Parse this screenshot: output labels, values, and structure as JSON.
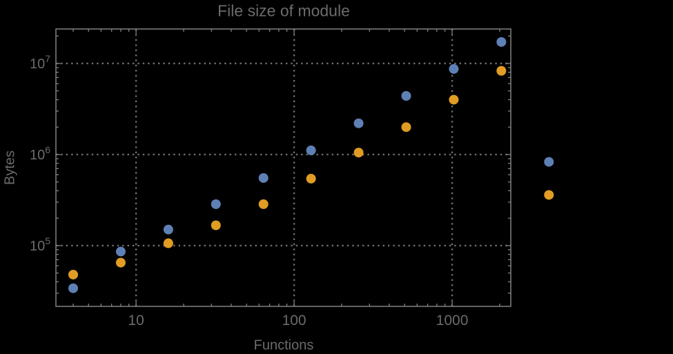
{
  "chart_data": {
    "type": "scatter",
    "title": "File size of module",
    "xlabel": "Functions",
    "ylabel": "Bytes",
    "xscale": "log",
    "yscale": "log",
    "xlim": [
      3.11,
      2350
    ],
    "ylim": [
      21500,
      23900000
    ],
    "grid": "dotted-at-major-ticks",
    "legend": "none",
    "x_ticks": [
      {
        "value": 10,
        "label": "10"
      },
      {
        "value": 100,
        "label": "100"
      },
      {
        "value": 1000,
        "label": "1000"
      }
    ],
    "y_ticks": [
      {
        "value": 100000,
        "mantissa": "10",
        "exponent": "5"
      },
      {
        "value": 1000000,
        "mantissa": "10",
        "exponent": "6"
      },
      {
        "value": 10000000,
        "mantissa": "10",
        "exponent": "7"
      }
    ],
    "x": [
      4,
      8,
      16,
      32,
      64,
      128,
      256,
      512,
      1024,
      2048,
      4096
    ],
    "series": [
      {
        "color": "#5e81b5",
        "values": [
          34000,
          86000,
          150000,
          285000,
          552000,
          1110000,
          2200000,
          4400000,
          8700000,
          17200000,
          830000
        ]
      },
      {
        "color": "#e19c24",
        "values": [
          48000,
          65000,
          106000,
          167000,
          285000,
          543000,
          1050000,
          2000000,
          4000000,
          8300000,
          360000
        ]
      }
    ],
    "colors": {
      "background": "#000000",
      "frame": "#828282",
      "grid": "#6f6f6f",
      "text": "#6b6b6b",
      "series1": "#5e81b5",
      "series2": "#e19c24"
    }
  }
}
